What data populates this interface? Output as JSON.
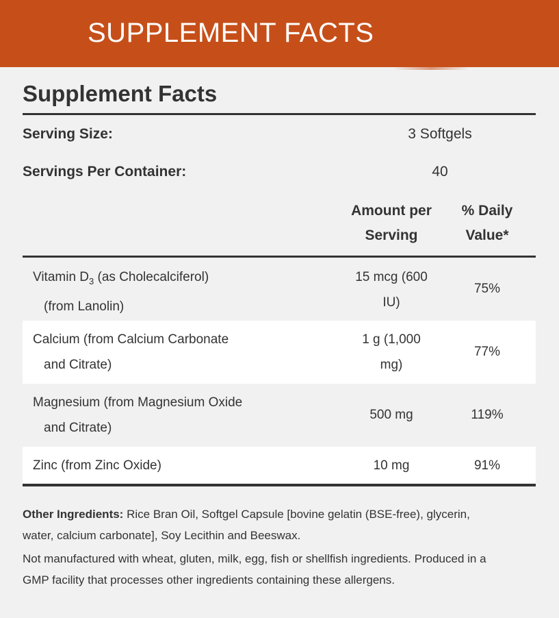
{
  "banner": {
    "title": "SUPPLEMENT FACTS"
  },
  "panel": {
    "title": "Supplement Facts",
    "serving_size_label": "Serving Size:",
    "serving_size_value": "3 Softgels",
    "servings_per_container_label": "Servings Per Container:",
    "servings_per_container_value": "40",
    "header_amount_line1": "Amount per",
    "header_amount_line2": "Serving",
    "header_dv_line1": "% Daily",
    "header_dv_line2": "Value*"
  },
  "nutrients": [
    {
      "name_main": "Vitamin D",
      "name_sub": "3",
      "name_rest": " (as Cholecalciferol)",
      "name_line2": "(from Lanolin)",
      "amount_line1": "15 mcg (600",
      "amount_line2": "IU)",
      "dv": "75%"
    },
    {
      "name_line1": "Calcium (from Calcium Carbonate",
      "name_line2": "and Citrate)",
      "amount_line1": "1 g (1,000",
      "amount_line2": "mg)",
      "dv": "77%"
    },
    {
      "name_line1": "Magnesium (from Magnesium Oxide",
      "name_line2": "and Citrate)",
      "amount_line1": "500 mg",
      "dv": "119%"
    },
    {
      "name_line1": "Zinc (from Zinc Oxide)",
      "amount_line1": "10 mg",
      "dv": "91%"
    }
  ],
  "footer": {
    "other_ingredients_label": "Other Ingredients:",
    "other_ingredients_text": "Rice Bran Oil, Softgel Capsule [bovine gelatin (BSE-free), glycerin, water, calcium carbonate], Soy Lecithin and Beeswax.",
    "allergen_text": "Not manufactured with wheat, gluten, milk, egg, fish or shellfish ingredients. Produced in a GMP facility that processes other ingredients containing these allergens."
  }
}
